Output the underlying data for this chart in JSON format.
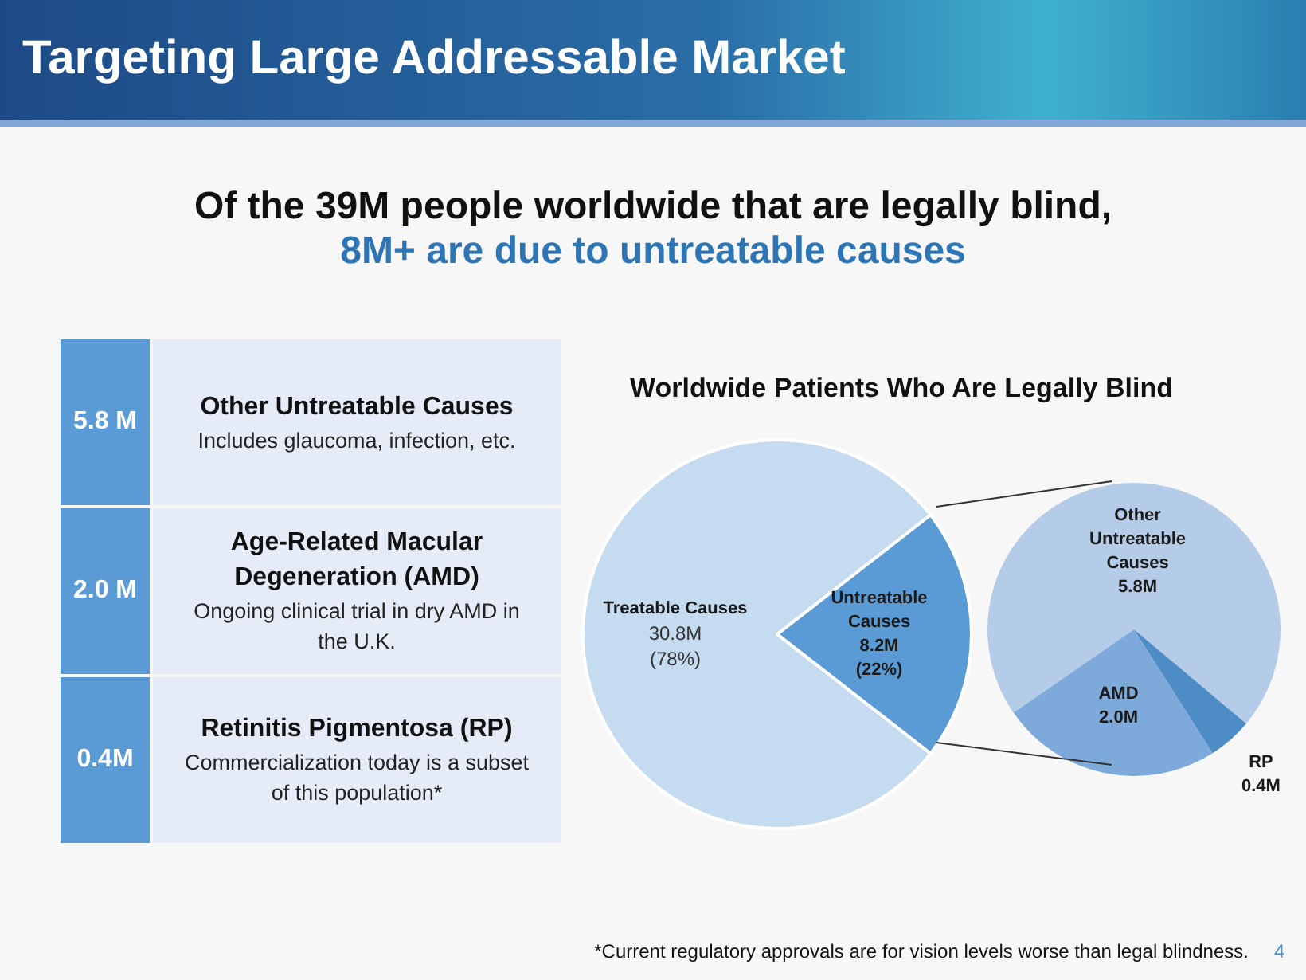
{
  "chart_data": [
    {
      "type": "other",
      "title": "Targeting Large Addressable Market",
      "subtitle": "Of the 39M people worldwide that are legally blind,\n8M+ are due to untreatable causes",
      "categories": [
        "Other Untreatable Causes",
        "Age-Related Macular Degeneration (AMD)",
        "Retinitis Pigmentosa (RP)"
      ],
      "value_labels": [
        "5.8 M",
        "2.0 M",
        "0.4M"
      ],
      "annotations": [
        "Includes glaucoma, infection, etc.",
        "Ongoing clinical trial in dry AMD in the U.K.",
        "Commercialization today is a subset of this population*"
      ]
    },
    {
      "type": "pie",
      "title": "Worldwide Patients Who Are Legally Blind",
      "categories": [
        "Treatable Causes",
        "Untreatable Causes"
      ],
      "values": [
        30.8,
        8.2
      ],
      "value_labels": [
        "30.8M",
        "8.2M"
      ],
      "colors": [
        "#c5dbef",
        "#5b9bd5"
      ],
      "annotations": [
        {
          "text": "(78%)",
          "x": "Treatable Causes"
        },
        {
          "text": "(22%)",
          "x": "Untreatable Causes"
        },
        "*Current regulatory approvals are for vision levels worse than legal blindness."
      ]
    },
    {
      "type": "pie",
      "categories": [
        "Other Untreatable Causes",
        "AMD",
        "RP"
      ],
      "values": [
        5.8,
        2.0,
        0.4
      ],
      "value_labels": [
        "5.8M",
        "2.0M",
        "0.4M"
      ],
      "colors": [
        "#b4cce8",
        "#7eaadb",
        "#4e8cc6"
      ],
      "annotations": [
        "4"
      ]
    }
  ]
}
